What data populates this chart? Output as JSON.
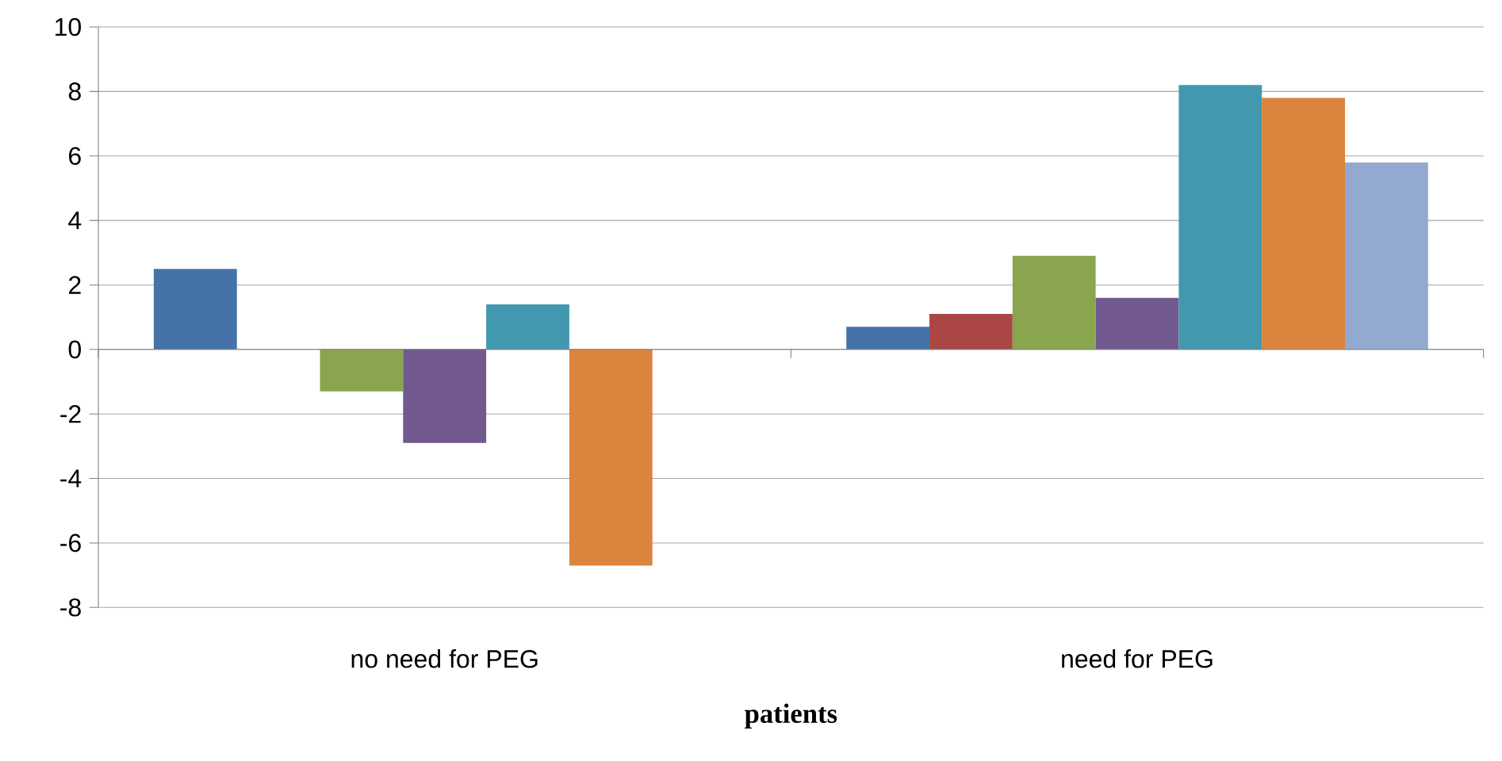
{
  "chart_data": {
    "type": "bar",
    "xlabel": "patients",
    "categories": [
      "no need for PEG",
      "need for PEG"
    ],
    "series": [
      {
        "color": "#4572a7",
        "values": [
          2.5,
          0.7
        ]
      },
      {
        "color": "#aa4643",
        "values": [
          null,
          1.1
        ]
      },
      {
        "color": "#89a54e",
        "values": [
          -1.3,
          2.9
        ]
      },
      {
        "color": "#71588f",
        "values": [
          -2.9,
          1.6
        ]
      },
      {
        "color": "#4198af",
        "values": [
          1.4,
          8.2
        ]
      },
      {
        "color": "#db843d",
        "values": [
          -6.7,
          7.8
        ]
      },
      {
        "color": "#93a9cf",
        "values": [
          null,
          5.8
        ]
      }
    ],
    "ylim": [
      -8,
      10
    ],
    "yticks": [
      -8,
      -6,
      -4,
      -2,
      0,
      2,
      4,
      6,
      8,
      10
    ],
    "grid": "y"
  }
}
